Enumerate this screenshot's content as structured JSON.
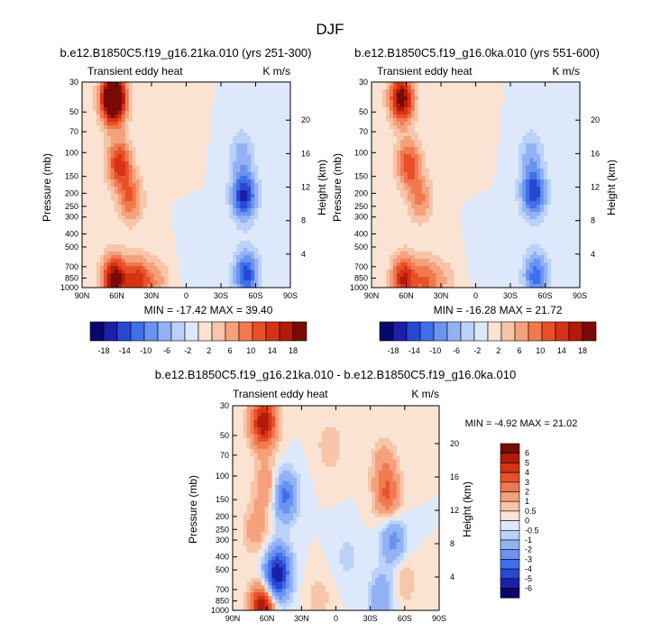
{
  "figure": {
    "title": "DJF"
  },
  "palette": {
    "blue_to_red": [
      "#08086b",
      "#1b20a8",
      "#2a47d4",
      "#3f6fea",
      "#6a93f2",
      "#93b2f4",
      "#bbd1f8",
      "#dde8fb",
      "#fbe3d3",
      "#f7c5a8",
      "#f4a17c",
      "#f07a50",
      "#e9502a",
      "#d63214",
      "#b11b0a",
      "#7a0a05"
    ],
    "diff_colors": [
      "#08086b",
      "#1b20a8",
      "#2a47d4",
      "#3f6fea",
      "#6a93f2",
      "#93b2f4",
      "#bbd1f8",
      "#dde8fb",
      "#fbe3d3",
      "#f7c5a8",
      "#f4a17c",
      "#f07a50",
      "#e9502a",
      "#d63214",
      "#b11b0a",
      "#7a0a05"
    ]
  },
  "chart_data": [
    {
      "type": "heatmap",
      "panel": "top-left",
      "title": "b.e12.B1850C5.f19_g16.21ka.010 (yrs 251-300)",
      "left_label": "Transient eddy heat",
      "units": "K m/s",
      "xlabel": "",
      "ylabel": "Pressure (mb)",
      "ylabel_right": "Height (km)",
      "x_ticks": [
        "90N",
        "60N",
        "30N",
        "0",
        "30S",
        "60S",
        "90S"
      ],
      "y_ticks": [
        "30",
        "50",
        "70",
        "100",
        "150",
        "200",
        "250",
        "300",
        "400",
        "500",
        "700",
        "850",
        "1000"
      ],
      "y_ticks_right": [
        "20",
        "16",
        "12",
        "8",
        "4"
      ],
      "stats_label": "MIN = -17.42  MAX = 39.40",
      "min": -17.42,
      "max": 39.4,
      "colorbar_labels": [
        "-18",
        "-14",
        "-10",
        "-6",
        "-2",
        "2",
        "6",
        "10",
        "14",
        "18"
      ],
      "features": [
        {
          "lat": 63,
          "p": 40,
          "value": 30
        },
        {
          "lat": 58,
          "p": 120,
          "value": 14
        },
        {
          "lat": 48,
          "p": 220,
          "value": 10
        },
        {
          "lat": 62,
          "p": 870,
          "value": 20
        },
        {
          "lat": 42,
          "p": 900,
          "value": 14
        },
        {
          "lat": 25,
          "p": 900,
          "value": 6
        },
        {
          "lat": -50,
          "p": 210,
          "value": -16
        },
        {
          "lat": -52,
          "p": 800,
          "value": -14
        },
        {
          "lat": -48,
          "p": 100,
          "value": -6
        },
        {
          "lat": -10,
          "p": 600,
          "value": -2
        },
        {
          "lat": 5,
          "p": 70,
          "value": 2
        }
      ]
    },
    {
      "type": "heatmap",
      "panel": "top-right",
      "title": "b.e12.B1850C5.f19_g16.0ka.010 (yrs 551-600)",
      "left_label": "Transient eddy heat",
      "units": "K m/s",
      "xlabel": "",
      "ylabel": "Pressure (mb)",
      "ylabel_right": "Height (km)",
      "x_ticks": [
        "90N",
        "60N",
        "30N",
        "0",
        "30S",
        "60S",
        "90S"
      ],
      "y_ticks": [
        "30",
        "50",
        "70",
        "100",
        "150",
        "200",
        "250",
        "300",
        "400",
        "500",
        "700",
        "850",
        "1000"
      ],
      "y_ticks_right": [
        "20",
        "16",
        "12",
        "8",
        "4"
      ],
      "stats_label": "MIN = -16.28  MAX = 21.72",
      "min": -16.28,
      "max": 21.72,
      "colorbar_labels": [
        "-18",
        "-14",
        "-10",
        "-6",
        "-2",
        "2",
        "6",
        "10",
        "14",
        "18"
      ],
      "features": [
        {
          "lat": 64,
          "p": 40,
          "value": 20
        },
        {
          "lat": 58,
          "p": 120,
          "value": 12
        },
        {
          "lat": 48,
          "p": 220,
          "value": 8
        },
        {
          "lat": 62,
          "p": 870,
          "value": 16
        },
        {
          "lat": 42,
          "p": 900,
          "value": 10
        },
        {
          "lat": 25,
          "p": 900,
          "value": 4
        },
        {
          "lat": -50,
          "p": 200,
          "value": -15
        },
        {
          "lat": -52,
          "p": 820,
          "value": -12
        },
        {
          "lat": -48,
          "p": 100,
          "value": -6
        },
        {
          "lat": -10,
          "p": 600,
          "value": -2
        },
        {
          "lat": 5,
          "p": 70,
          "value": 2
        }
      ]
    },
    {
      "type": "heatmap",
      "panel": "bottom",
      "title": "b.e12.B1850C5.f19_g16.21ka.010 - b.e12.B1850C5.f19_g16.0ka.010",
      "left_label": "Transient eddy heat",
      "units": "K m/s",
      "xlabel": "",
      "ylabel": "Pressure (mb)",
      "ylabel_right": "Height (km)",
      "x_ticks": [
        "90N",
        "60N",
        "30N",
        "0",
        "30S",
        "60S",
        "90S"
      ],
      "y_ticks": [
        "30",
        "50",
        "70",
        "100",
        "150",
        "200",
        "250",
        "300",
        "400",
        "500",
        "700",
        "850",
        "1000"
      ],
      "y_ticks_right": [
        "20",
        "16",
        "12",
        "8",
        "4"
      ],
      "stats_label": "MIN = -4.92  MAX = 21.02",
      "min": -4.92,
      "max": 21.02,
      "colorbar_labels": [
        "6",
        "5",
        "4",
        "3",
        "2",
        "1",
        "0.5",
        "0",
        "-0.5",
        "-1",
        "-2",
        "-3",
        "-4",
        "-5",
        "-6"
      ],
      "features": [
        {
          "lat": 63,
          "p": 40,
          "value": 6
        },
        {
          "lat": 60,
          "p": 120,
          "value": 2
        },
        {
          "lat": 70,
          "p": 250,
          "value": 1.5
        },
        {
          "lat": 63,
          "p": 950,
          "value": 7
        },
        {
          "lat": 45,
          "p": 140,
          "value": -3.5
        },
        {
          "lat": 50,
          "p": 500,
          "value": -4.5
        },
        {
          "lat": 55,
          "p": 700,
          "value": -3
        },
        {
          "lat": -45,
          "p": 140,
          "value": 3
        },
        {
          "lat": -42,
          "p": 80,
          "value": 1.5
        },
        {
          "lat": -50,
          "p": 300,
          "value": -2.5
        },
        {
          "lat": -60,
          "p": 600,
          "value": 1
        },
        {
          "lat": -40,
          "p": 800,
          "value": -2
        },
        {
          "lat": 5,
          "p": 60,
          "value": 1
        },
        {
          "lat": -10,
          "p": 400,
          "value": -0.7
        },
        {
          "lat": 15,
          "p": 800,
          "value": 0.8
        }
      ]
    }
  ]
}
